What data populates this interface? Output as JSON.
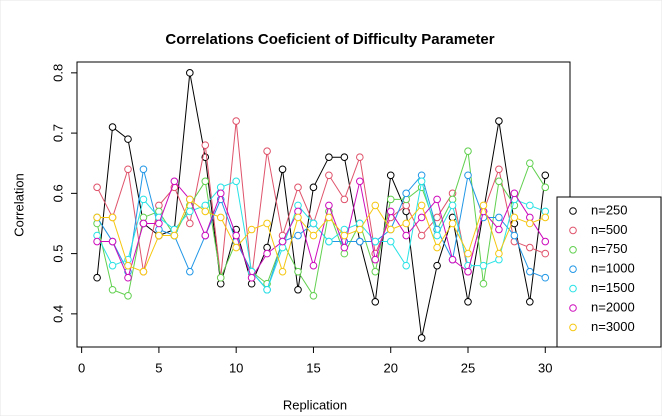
{
  "chart_data": {
    "type": "line",
    "title": "Correlations Coeficient of Difficulty Parameter",
    "x_label": "Replication",
    "y_label": "Correlation",
    "x": [
      1,
      2,
      3,
      4,
      5,
      6,
      7,
      8,
      9,
      10,
      11,
      12,
      13,
      14,
      15,
      16,
      17,
      18,
      19,
      20,
      21,
      22,
      23,
      24,
      25,
      26,
      27,
      28,
      29,
      30
    ],
    "xlim": [
      -0.3,
      31.6
    ],
    "xticks": [
      0,
      5,
      10,
      15,
      20,
      25,
      30
    ],
    "ylim": [
      0.345,
      0.818
    ],
    "yticks": [
      0.4,
      0.5,
      0.6,
      0.7,
      0.8
    ],
    "legend": "bottom-right",
    "series": [
      {
        "name": "n=250",
        "color": "#000000",
        "values": [
          0.46,
          0.71,
          0.69,
          0.55,
          0.53,
          0.54,
          0.8,
          0.66,
          0.45,
          0.54,
          0.45,
          0.51,
          0.64,
          0.44,
          0.61,
          0.66,
          0.66,
          0.52,
          0.42,
          0.63,
          0.57,
          0.36,
          0.48,
          0.56,
          0.42,
          0.57,
          0.72,
          0.55,
          0.42,
          0.63
        ]
      },
      {
        "name": "n=500",
        "color": "#DF536B",
        "values": [
          0.61,
          0.56,
          0.64,
          0.47,
          0.58,
          0.61,
          0.55,
          0.68,
          0.46,
          0.72,
          0.46,
          0.67,
          0.53,
          0.61,
          0.55,
          0.63,
          0.59,
          0.66,
          0.5,
          0.56,
          0.58,
          0.53,
          0.56,
          0.6,
          0.47,
          0.57,
          0.64,
          0.52,
          0.51,
          0.5
        ]
      },
      {
        "name": "n=750",
        "color": "#61D04F",
        "values": [
          0.55,
          0.44,
          0.43,
          0.56,
          0.57,
          0.53,
          0.58,
          0.62,
          0.46,
          0.52,
          0.47,
          0.45,
          0.52,
          0.47,
          0.43,
          0.57,
          0.5,
          0.55,
          0.47,
          0.59,
          0.59,
          0.61,
          0.54,
          0.59,
          0.67,
          0.45,
          0.62,
          0.58,
          0.65,
          0.61
        ]
      },
      {
        "name": "n=1000",
        "color": "#2297E6",
        "values": [
          0.56,
          0.52,
          0.47,
          0.64,
          0.54,
          0.53,
          0.47,
          0.53,
          0.59,
          0.52,
          0.47,
          0.44,
          0.52,
          0.53,
          0.55,
          0.52,
          0.52,
          0.52,
          0.52,
          0.54,
          0.6,
          0.63,
          0.54,
          0.49,
          0.63,
          0.56,
          0.56,
          0.53,
          0.47,
          0.46
        ]
      },
      {
        "name": "n=1500",
        "color": "#28E2E5",
        "values": [
          0.53,
          0.48,
          0.49,
          0.59,
          0.56,
          0.54,
          0.57,
          0.58,
          0.61,
          0.62,
          0.47,
          0.44,
          0.51,
          0.58,
          0.55,
          0.52,
          0.54,
          0.55,
          0.52,
          0.52,
          0.48,
          0.62,
          0.53,
          0.58,
          0.48,
          0.48,
          0.49,
          0.59,
          0.58,
          0.57
        ]
      },
      {
        "name": "n=2000",
        "color": "#CD0BBC",
        "values": [
          0.52,
          0.52,
          0.46,
          0.55,
          0.55,
          0.62,
          0.59,
          0.53,
          0.6,
          0.53,
          0.46,
          0.5,
          0.52,
          0.57,
          0.48,
          0.58,
          0.51,
          0.62,
          0.49,
          0.57,
          0.53,
          0.56,
          0.59,
          0.49,
          0.47,
          0.57,
          0.54,
          0.6,
          0.56,
          0.52
        ]
      },
      {
        "name": "n=3000",
        "color": "#F5C710",
        "values": [
          0.56,
          0.56,
          0.48,
          0.47,
          0.53,
          0.53,
          0.59,
          0.57,
          0.56,
          0.51,
          0.54,
          0.55,
          0.47,
          0.56,
          0.53,
          0.56,
          0.53,
          0.54,
          0.58,
          0.54,
          0.55,
          0.58,
          0.51,
          0.55,
          0.5,
          0.58,
          0.5,
          0.56,
          0.55,
          0.56
        ]
      }
    ]
  }
}
